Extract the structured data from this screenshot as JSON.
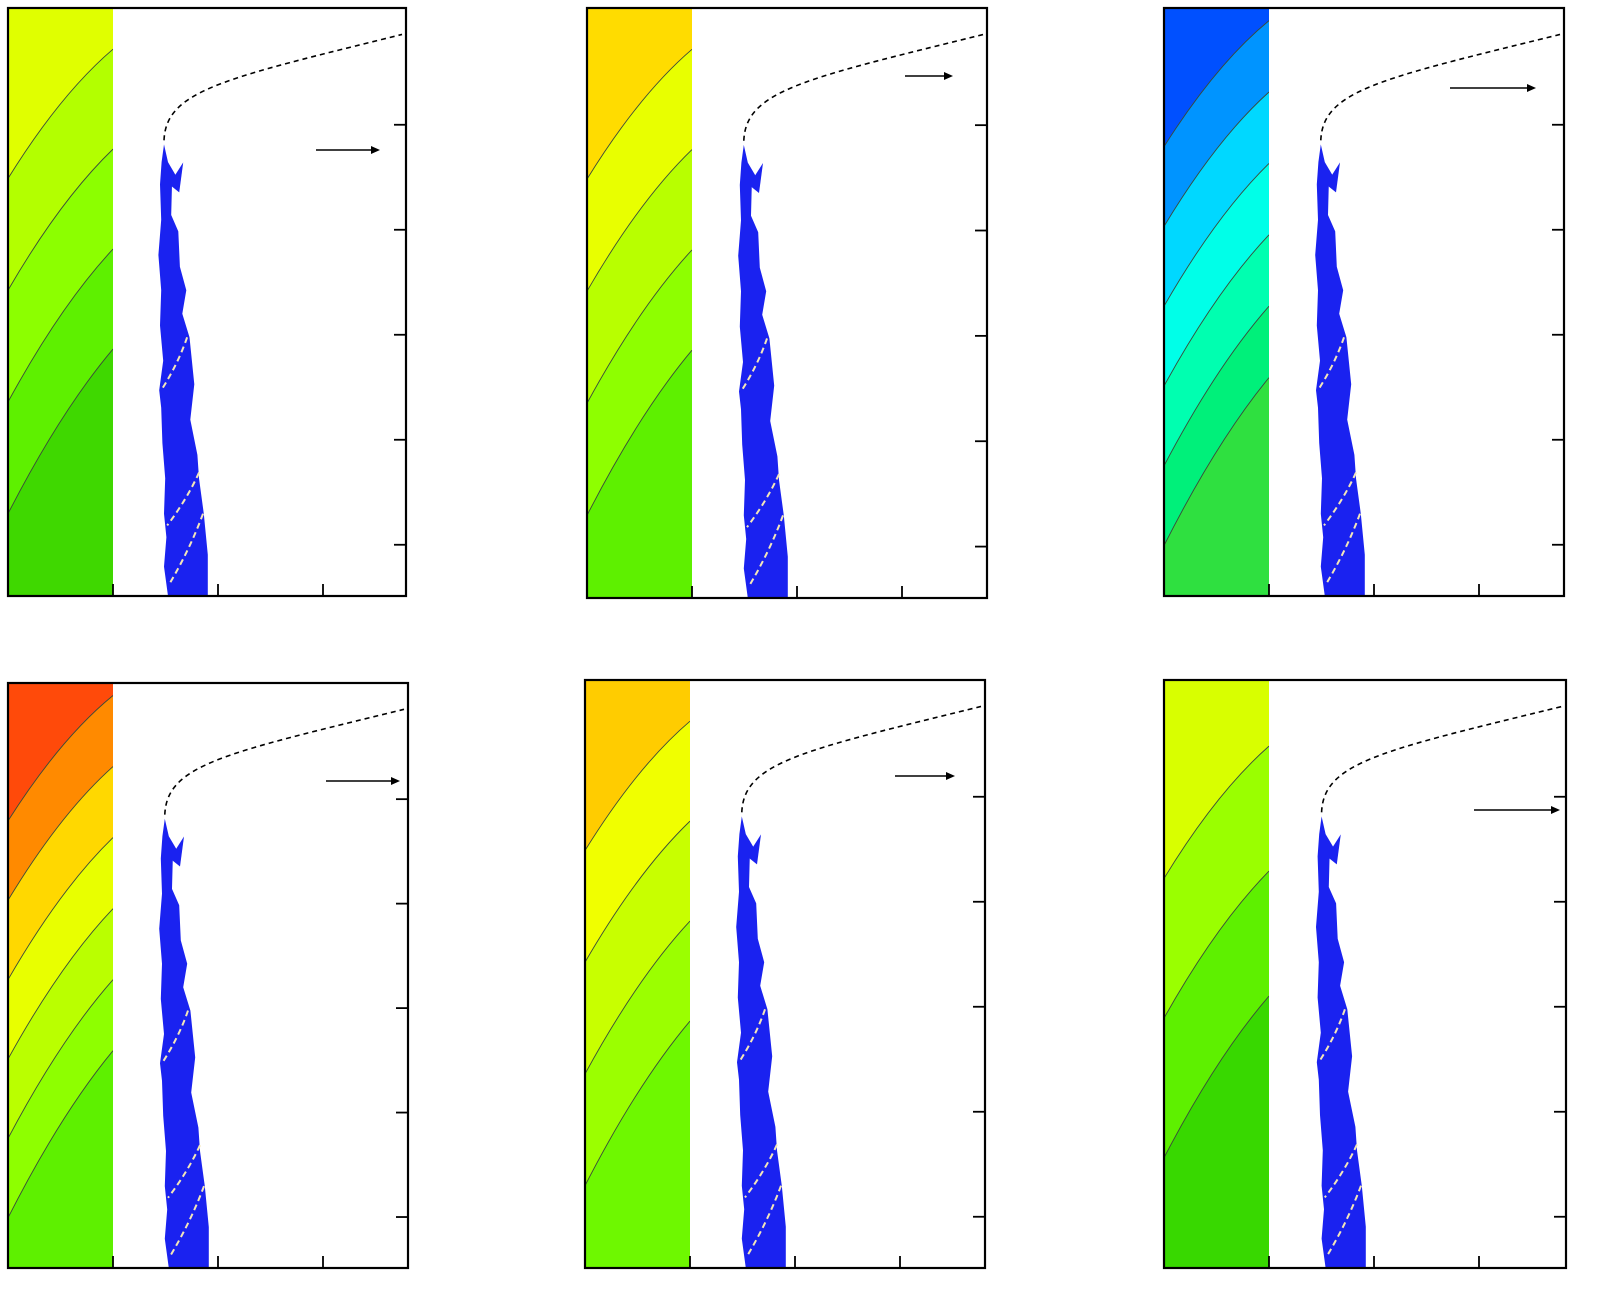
{
  "panels": [
    {
      "id": "top-left",
      "band_colors": [
        "#e0ff00",
        "#b3ff00",
        "#8cff00",
        "#5ef000",
        "#3fd800"
      ],
      "arrow_direction": "right",
      "ticks": {
        "bottom": 3,
        "right": 5
      }
    },
    {
      "id": "top-middle",
      "band_colors": [
        "#ffdc00",
        "#e8ff00",
        "#b8ff00",
        "#8eff00",
        "#5ef000"
      ],
      "arrow_direction": "right",
      "ticks": {
        "bottom": 3,
        "right": 5
      }
    },
    {
      "id": "top-right",
      "band_colors": [
        "#0050ff",
        "#0094ff",
        "#00d8ff",
        "#00ffe8",
        "#00ffb0",
        "#00f07a",
        "#2fe040"
      ],
      "arrow_direction": "right",
      "ticks": {
        "bottom": 3,
        "right": 5
      }
    },
    {
      "id": "bottom-left",
      "band_colors": [
        "#ff4a0a",
        "#ff8a00",
        "#ffd800",
        "#e8ff00",
        "#baff00",
        "#8eff00",
        "#5ef000"
      ],
      "arrow_direction": "right",
      "ticks": {
        "bottom": 3,
        "right": 5
      }
    },
    {
      "id": "bottom-middle",
      "band_colors": [
        "#ffcc00",
        "#f0ff00",
        "#c8ff00",
        "#9bff00",
        "#6ef800"
      ],
      "arrow_direction": "right",
      "ticks": {
        "bottom": 3,
        "right": 5
      }
    },
    {
      "id": "bottom-right",
      "band_colors": [
        "#d8ff00",
        "#9aff00",
        "#5ef000",
        "#38d800"
      ],
      "arrow_direction": "right",
      "ticks": {
        "bottom": 3,
        "right": 5
      }
    }
  ],
  "colors": {
    "crack": "#1a22f0",
    "frame": "#000000",
    "dashed_path": "#000000",
    "dashed_branch": "#f4e6b8"
  },
  "icons": {
    "direction": "arrow-right-icon"
  }
}
